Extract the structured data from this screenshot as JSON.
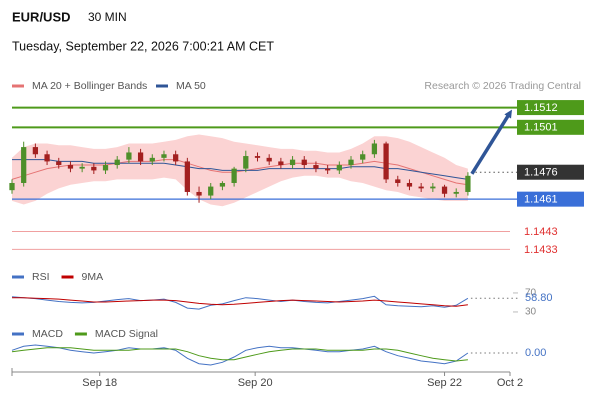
{
  "header": {
    "symbol": "EUR/USD",
    "timeframe": "30 MIN",
    "timestamp": "Tuesday, September 22, 2026 7:00:21 AM CET"
  },
  "credit": "Research © 2026 Trading Central",
  "chart_data": [
    {
      "type": "candlestick",
      "x": [
        0,
        1,
        2,
        3,
        4,
        5,
        6,
        7,
        8,
        9,
        10,
        11,
        12,
        13,
        14,
        15,
        16,
        17,
        18,
        19,
        20,
        21,
        22,
        23,
        24,
        25,
        26,
        27,
        28,
        29,
        30,
        31,
        32,
        33,
        34,
        35,
        36,
        37,
        38,
        39
      ],
      "open": [
        1.1466,
        1.147,
        1.149,
        1.1486,
        1.1482,
        1.148,
        1.1478,
        1.1479,
        1.1477,
        1.148,
        1.1483,
        1.1487,
        1.1482,
        1.1484,
        1.1486,
        1.1482,
        1.1465,
        1.1463,
        1.1468,
        1.147,
        1.1478,
        1.1485,
        1.1484,
        1.1482,
        1.148,
        1.1483,
        1.148,
        1.1478,
        1.1477,
        1.148,
        1.1483,
        1.1486,
        1.1492,
        1.1472,
        1.147,
        1.1468,
        1.1467,
        1.1468,
        1.1464,
        1.1465
      ],
      "high": [
        1.1472,
        1.1493,
        1.1492,
        1.1488,
        1.1484,
        1.1482,
        1.1481,
        1.1481,
        1.1482,
        1.1485,
        1.149,
        1.1489,
        1.1486,
        1.1488,
        1.1488,
        1.1484,
        1.1468,
        1.147,
        1.1471,
        1.1479,
        1.1488,
        1.1487,
        1.1486,
        1.1484,
        1.1485,
        1.1485,
        1.1482,
        1.148,
        1.1482,
        1.1485,
        1.1488,
        1.1494,
        1.1493,
        1.1474,
        1.1472,
        1.147,
        1.147,
        1.1469,
        1.1467,
        1.1476
      ],
      "low": [
        1.1464,
        1.1468,
        1.1484,
        1.148,
        1.1478,
        1.1476,
        1.1476,
        1.1475,
        1.1475,
        1.1478,
        1.1481,
        1.148,
        1.148,
        1.1482,
        1.148,
        1.1463,
        1.1459,
        1.1461,
        1.1466,
        1.1468,
        1.1476,
        1.1482,
        1.148,
        1.1478,
        1.1478,
        1.1478,
        1.1476,
        1.1475,
        1.1475,
        1.1478,
        1.1481,
        1.1484,
        1.147,
        1.1468,
        1.1466,
        1.1465,
        1.1465,
        1.1462,
        1.1462,
        1.1463
      ],
      "close": [
        1.147,
        1.149,
        1.1486,
        1.1482,
        1.148,
        1.1478,
        1.1479,
        1.1477,
        1.148,
        1.1483,
        1.1487,
        1.1482,
        1.1484,
        1.1486,
        1.1482,
        1.1465,
        1.1463,
        1.1468,
        1.147,
        1.1478,
        1.1485,
        1.1484,
        1.1482,
        1.148,
        1.1483,
        1.148,
        1.1478,
        1.1477,
        1.148,
        1.1483,
        1.1486,
        1.1492,
        1.1472,
        1.147,
        1.1468,
        1.1467,
        1.1468,
        1.1464,
        1.1465,
        1.1474
      ],
      "up_color": "#4e8f2a",
      "down_color": "#a32020",
      "overlays": [
        {
          "name": "MA 20 + Bollinger Bands",
          "color": "#e57373",
          "band_color": "#fbd3d3",
          "values": [
            1.1472,
            1.1474,
            1.1476,
            1.1478,
            1.1479,
            1.148,
            1.148,
            1.148,
            1.148,
            1.1481,
            1.1482,
            1.1482,
            1.1482,
            1.1483,
            1.1483,
            1.1481,
            1.1479,
            1.1477,
            1.1476,
            1.1476,
            1.1477,
            1.1478,
            1.1479,
            1.148,
            1.1481,
            1.1481,
            1.1481,
            1.148,
            1.148,
            1.148,
            1.1481,
            1.1482,
            1.1481,
            1.148,
            1.1478,
            1.1476,
            1.1474,
            1.1472,
            1.147,
            1.1469
          ],
          "upper": [
            1.1484,
            1.149,
            1.1492,
            1.1492,
            1.1491,
            1.1491,
            1.149,
            1.1489,
            1.1489,
            1.149,
            1.1492,
            1.1492,
            1.1492,
            1.1493,
            1.1494,
            1.1496,
            1.1497,
            1.1496,
            1.1495,
            1.1493,
            1.1492,
            1.1491,
            1.149,
            1.1489,
            1.1489,
            1.1488,
            1.1488,
            1.1487,
            1.1487,
            1.1489,
            1.1492,
            1.1496,
            1.1496,
            1.1495,
            1.1493,
            1.149,
            1.1487,
            1.1484,
            1.148,
            1.1478
          ],
          "lower": [
            1.146,
            1.1458,
            1.146,
            1.1464,
            1.1467,
            1.1469,
            1.147,
            1.1471,
            1.1471,
            1.1472,
            1.1472,
            1.1472,
            1.1472,
            1.1473,
            1.1472,
            1.1466,
            1.1461,
            1.1458,
            1.1457,
            1.1459,
            1.1462,
            1.1465,
            1.1468,
            1.1471,
            1.1473,
            1.1474,
            1.1474,
            1.1473,
            1.1473,
            1.1471,
            1.147,
            1.1468,
            1.1466,
            1.1465,
            1.1463,
            1.1462,
            1.1461,
            1.146,
            1.146,
            1.146
          ]
        },
        {
          "name": "MA 50",
          "color": "#2f5597",
          "values": [
            1.1483,
            1.1483,
            1.1483,
            1.1483,
            1.1482,
            1.1482,
            1.1482,
            1.1481,
            1.1481,
            1.1481,
            1.1481,
            1.1481,
            1.1481,
            1.1481,
            1.148,
            1.1479,
            1.1478,
            1.1478,
            1.1477,
            1.1477,
            1.1477,
            1.1477,
            1.1478,
            1.1478,
            1.1478,
            1.1478,
            1.1478,
            1.1478,
            1.1478,
            1.1479,
            1.1479,
            1.1479,
            1.1478,
            1.1478,
            1.1477,
            1.1476,
            1.1475,
            1.1474,
            1.1473,
            1.1472
          ]
        }
      ],
      "levels": [
        {
          "value": 1.1512,
          "color": "#4e9a1a",
          "style": "box"
        },
        {
          "value": 1.1501,
          "color": "#4e9a1a",
          "style": "box"
        },
        {
          "value": 1.1476,
          "color": "#333333",
          "style": "current"
        },
        {
          "value": 1.1461,
          "color": "#3a6fd8",
          "style": "box"
        },
        {
          "value": 1.1443,
          "color": "#e03030",
          "style": "text"
        },
        {
          "value": 1.1433,
          "color": "#e03030",
          "style": "text"
        }
      ],
      "forecast_arrow": {
        "to": 1.1512,
        "color": "#2f5597"
      },
      "xlim": [
        0,
        42.6
      ],
      "ylim": [
        1.1426,
        1.1519
      ],
      "xticks": [
        {
          "value": 7.5,
          "label": "Sep 18"
        },
        {
          "value": 20.8,
          "label": "Sep 20"
        },
        {
          "value": 37,
          "label": "Sep 22"
        },
        {
          "value": 42.6,
          "label": "Oct 2"
        }
      ]
    },
    {
      "type": "line",
      "series": [
        {
          "name": "RSI",
          "color": "#4472c4",
          "values": [
            62,
            60,
            58,
            55,
            52,
            50,
            49,
            50,
            53,
            56,
            58,
            54,
            55,
            57,
            50,
            38,
            36,
            44,
            47,
            54,
            60,
            58,
            55,
            52,
            55,
            52,
            50,
            49,
            52,
            55,
            58,
            63,
            45,
            43,
            42,
            41,
            43,
            40,
            44,
            58.8
          ]
        },
        {
          "name": "9MA",
          "color": "#c00000",
          "values": [
            60,
            60,
            59,
            58,
            57,
            55,
            53,
            51,
            51,
            52,
            53,
            54,
            55,
            55,
            54,
            51,
            48,
            46,
            45,
            46,
            48,
            50,
            52,
            54,
            55,
            54,
            53,
            52,
            51,
            52,
            53,
            55,
            53,
            51,
            49,
            47,
            45,
            43,
            42,
            45
          ]
        }
      ],
      "ylim": [
        20,
        80
      ],
      "yticks": [
        70,
        30
      ],
      "current": {
        "value": 58.8,
        "label": "58.80"
      }
    },
    {
      "type": "line",
      "series": [
        {
          "name": "MACD",
          "color": "#4472c4",
          "values": [
            0.0002,
            0.0005,
            0.0006,
            0.0005,
            0.0004,
            0.0002,
            0.0001,
            0,
            0.0001,
            0.0002,
            0.0004,
            0.0003,
            0.0003,
            0.0004,
            0.0002,
            -0.0004,
            -0.0008,
            -0.0009,
            -0.0007,
            -0.0003,
            0.0002,
            0.0004,
            0.0005,
            0.0004,
            0.0004,
            0.0003,
            0.0002,
            0.0001,
            0.0001,
            0.0002,
            0.0003,
            0.0005,
            0.0001,
            -0.0002,
            -0.0004,
            -0.0006,
            -0.0007,
            -0.0008,
            -0.0006,
            0
          ]
        },
        {
          "name": "MACD Signal",
          "color": "#4e9a1a",
          "values": [
            0.0001,
            0.0002,
            0.0003,
            0.0004,
            0.0004,
            0.0004,
            0.0003,
            0.0002,
            0.0002,
            0.0002,
            0.0002,
            0.0003,
            0.0003,
            0.0003,
            0.0003,
            0.0001,
            -0.0002,
            -0.0004,
            -0.0005,
            -0.0005,
            -0.0003,
            -0.0001,
            0.0001,
            0.0002,
            0.0003,
            0.0003,
            0.0003,
            0.0002,
            0.0002,
            0.0002,
            0.0002,
            0.0003,
            0.0003,
            0.0002,
            0,
            -0.0002,
            -0.0004,
            -0.0005,
            -0.0006,
            -0.0005
          ]
        }
      ],
      "ylim": [
        -0.0012,
        0.0012
      ],
      "current": {
        "value": 0,
        "label": "0.00"
      }
    }
  ]
}
